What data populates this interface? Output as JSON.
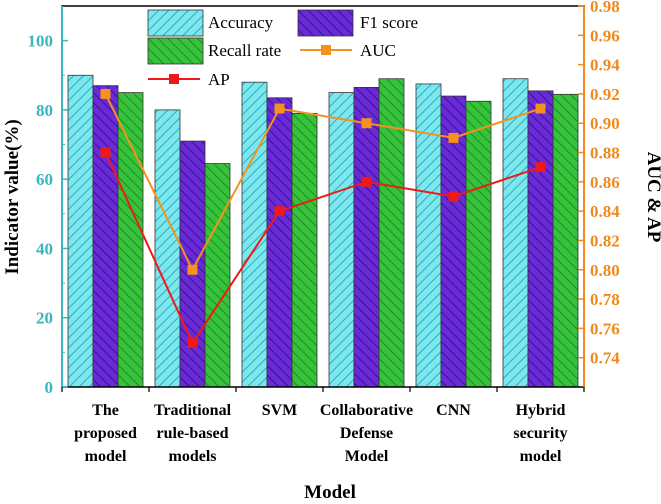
{
  "chart_data": {
    "type": "bar",
    "title": "",
    "xlabel": "Model",
    "ylabel": "Indicator value(%)",
    "y2label": "AUC & AP",
    "ylim": [
      0,
      110
    ],
    "y2lim": [
      0.72,
      0.98
    ],
    "yticks": [
      0,
      20,
      40,
      60,
      80,
      100
    ],
    "y2ticks": [
      0.74,
      0.76,
      0.78,
      0.8,
      0.82,
      0.84,
      0.86,
      0.88,
      0.9,
      0.92,
      0.94,
      0.96,
      0.98
    ],
    "categories": [
      [
        "The",
        "proposed",
        "model"
      ],
      [
        "Traditional",
        "rule-based",
        "models"
      ],
      [
        "SVM"
      ],
      [
        "Collaborative",
        "Defense",
        "Model"
      ],
      [
        "CNN"
      ],
      [
        "Hybrid",
        "security",
        "model"
      ]
    ],
    "bar_series": [
      {
        "name": "Accuracy",
        "axis": "left",
        "color": "#7fe6ee",
        "hatch": "#1fb2bf",
        "values": [
          90,
          80,
          88,
          85,
          87.5,
          89
        ]
      },
      {
        "name": "F1 score",
        "axis": "left",
        "color": "#6a2bd6",
        "hatch": "#3a0f9a",
        "values": [
          87,
          71,
          83.5,
          86.5,
          84,
          85.5
        ]
      },
      {
        "name": "Recall rate",
        "axis": "left",
        "color": "#36c23b",
        "hatch": "#1e8c22",
        "values": [
          85,
          64.5,
          79,
          89,
          82.5,
          84.5
        ]
      }
    ],
    "line_series": [
      {
        "name": "AUC",
        "axis": "right",
        "color": "#f5921e",
        "values": [
          0.92,
          0.8,
          0.91,
          0.9,
          0.89,
          0.91
        ]
      },
      {
        "name": "AP",
        "axis": "right",
        "color": "#f01818",
        "values": [
          0.88,
          0.75,
          0.84,
          0.86,
          0.85,
          0.87
        ]
      }
    ],
    "legend_position": "top"
  }
}
